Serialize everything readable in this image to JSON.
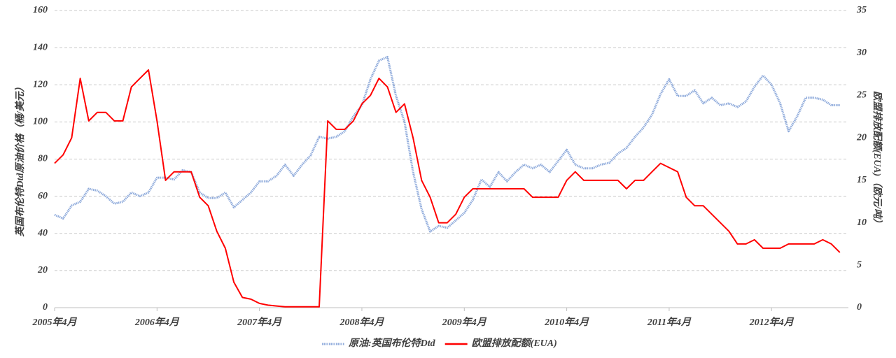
{
  "chart_data": {
    "type": "line",
    "y_label": "英国布伦特Dtd原油价格（桶/美元）",
    "y2_label": "欧盟排放配额(EUA)（欧元/吨）",
    "x": [
      "2005-04",
      "2005-05",
      "2005-06",
      "2005-07",
      "2005-08",
      "2005-09",
      "2005-10",
      "2005-11",
      "2005-12",
      "2006-01",
      "2006-02",
      "2006-03",
      "2006-04",
      "2006-05",
      "2006-06",
      "2006-07",
      "2006-08",
      "2006-09",
      "2006-10",
      "2006-11",
      "2006-12",
      "2007-01",
      "2007-02",
      "2007-03",
      "2007-04",
      "2007-05",
      "2007-06",
      "2007-07",
      "2007-08",
      "2007-09",
      "2007-10",
      "2007-11",
      "2007-12",
      "2008-01",
      "2008-02",
      "2008-03",
      "2008-04",
      "2008-05",
      "2008-06",
      "2008-07",
      "2008-08",
      "2008-09",
      "2008-10",
      "2008-11",
      "2008-12",
      "2009-01",
      "2009-02",
      "2009-03",
      "2009-04",
      "2009-05",
      "2009-06",
      "2009-07",
      "2009-08",
      "2009-09",
      "2009-10",
      "2009-11",
      "2009-12",
      "2010-01",
      "2010-02",
      "2010-03",
      "2010-04",
      "2010-05",
      "2010-06",
      "2010-07",
      "2010-08",
      "2010-09",
      "2010-10",
      "2010-11",
      "2010-12",
      "2011-01",
      "2011-02",
      "2011-03",
      "2011-04",
      "2011-05",
      "2011-06",
      "2011-07",
      "2011-08",
      "2011-09",
      "2011-10",
      "2011-11",
      "2011-12",
      "2012-01",
      "2012-02",
      "2012-03",
      "2012-04",
      "2012-05",
      "2012-06",
      "2012-07",
      "2012-08",
      "2012-09",
      "2012-10",
      "2012-11",
      "2012-12"
    ],
    "xlim": [
      "2005-04",
      "2013-01"
    ],
    "xticks": [
      {
        "value": "2005-04",
        "label": "2005年4月"
      },
      {
        "value": "2006-04",
        "label": "2006年4月"
      },
      {
        "value": "2007-04",
        "label": "2007年4月"
      },
      {
        "value": "2008-04",
        "label": "2008年4月"
      },
      {
        "value": "2009-04",
        "label": "2009年4月"
      },
      {
        "value": "2010-04",
        "label": "2010年4月"
      },
      {
        "value": "2011-04",
        "label": "2011年4月"
      },
      {
        "value": "2012-04",
        "label": "2012年4月"
      }
    ],
    "ylim": [
      0,
      160
    ],
    "yticks": [
      0,
      20,
      40,
      60,
      80,
      100,
      120,
      140,
      160
    ],
    "y2lim": [
      0,
      35
    ],
    "y2ticks": [
      0,
      5,
      10,
      15,
      20,
      25,
      30,
      35
    ],
    "grid": true,
    "legend": "bottom",
    "series": [
      {
        "name": "原油:英国布伦特Dtd",
        "color": "#8eaadb",
        "axis": "y",
        "values": [
          50,
          48,
          55,
          57,
          64,
          63,
          60,
          56,
          57,
          62,
          60,
          62,
          70,
          70,
          69,
          74,
          73,
          62,
          59,
          59,
          62,
          54,
          58,
          62,
          68,
          68,
          71,
          77,
          71,
          77,
          82,
          92,
          91,
          92,
          95,
          103,
          109,
          123,
          133,
          135,
          114,
          100,
          73,
          53,
          41,
          44,
          43,
          47,
          51,
          58,
          69,
          65,
          73,
          68,
          73,
          77,
          75,
          77,
          73,
          79,
          85,
          77,
          75,
          75,
          77,
          78,
          83,
          86,
          92,
          97,
          104,
          115,
          123,
          114,
          114,
          117,
          110,
          113,
          109,
          110,
          108,
          111,
          119,
          125,
          120,
          110,
          95,
          103,
          113,
          113,
          112,
          109,
          109
        ]
      },
      {
        "name": "欧盟排放配额(EUA)",
        "color": "#ff0000",
        "axis": "y2",
        "values": [
          17,
          18,
          20,
          27,
          22,
          23,
          23,
          22,
          22,
          26,
          27,
          28,
          22,
          15,
          16,
          16,
          16,
          13,
          12,
          9,
          7,
          3,
          1.2,
          1,
          0.5,
          0.3,
          0.2,
          0.1,
          0.1,
          0.1,
          0.1,
          0.1,
          22,
          21,
          21,
          22,
          24,
          25,
          27,
          26,
          23,
          24,
          20,
          15,
          13,
          10,
          10,
          11,
          13,
          14,
          14,
          14,
          14,
          14,
          14,
          14,
          13,
          13,
          13,
          13,
          15,
          16,
          15,
          15,
          15,
          15,
          15,
          14,
          15,
          15,
          16,
          17,
          16.5,
          16,
          13,
          12,
          12,
          11,
          10,
          9,
          7.5,
          7.5,
          8,
          7,
          7,
          7,
          7.5,
          7.5,
          7.5,
          7.5,
          8,
          7.5,
          6.5
        ]
      }
    ]
  }
}
